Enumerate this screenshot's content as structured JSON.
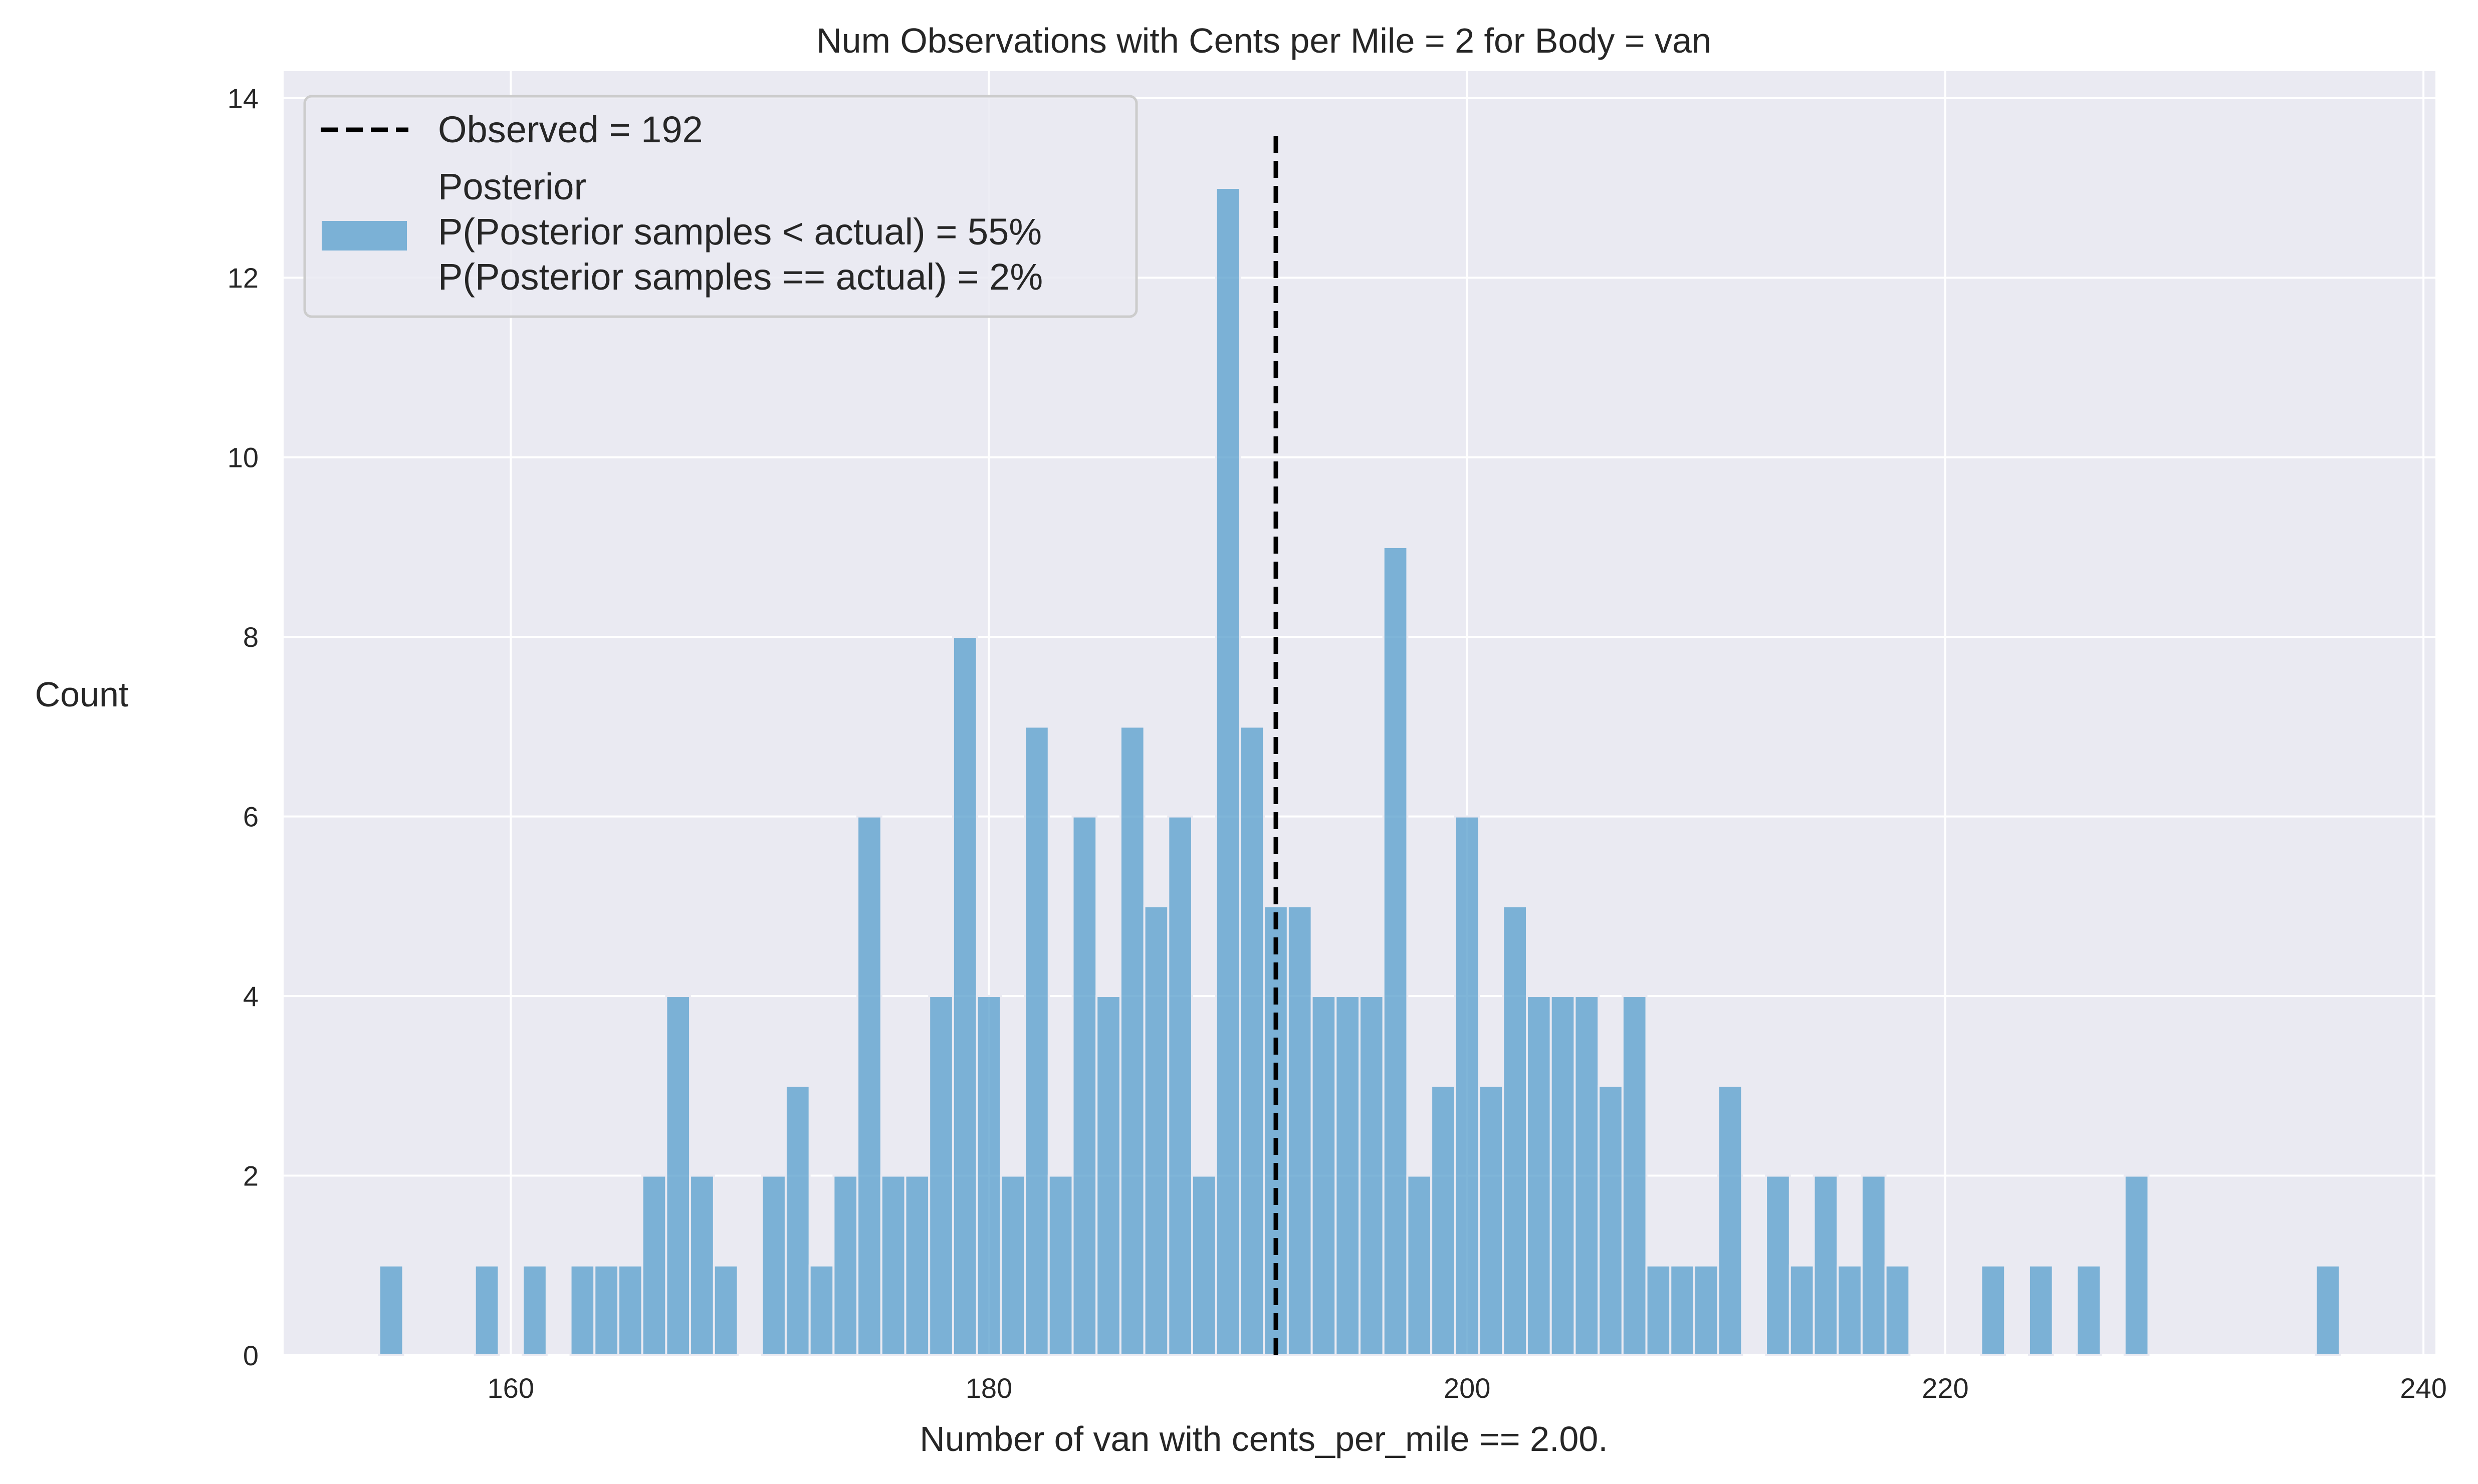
{
  "chart_data": {
    "type": "bar",
    "title": "Num Observations with Cents per Mile = 2 for Body = van",
    "xlabel": "Number of van with cents_per_mile == 2.00.",
    "ylabel": "Count",
    "xlim": [
      150.5,
      240.5
    ],
    "ylim": [
      0,
      14.3
    ],
    "x_ticks": [
      160,
      180,
      200,
      220,
      240
    ],
    "y_ticks": [
      0,
      2,
      4,
      6,
      8,
      10,
      12,
      14
    ],
    "grid": true,
    "legend_position": "top-left",
    "series": [
      {
        "name": "Posterior",
        "color": "#5fa2ce",
        "x": [
          155,
          159,
          161,
          163,
          164,
          165,
          166,
          167,
          168,
          169,
          171,
          172,
          173,
          174,
          175,
          176,
          177,
          178,
          179,
          180,
          181,
          182,
          183,
          184,
          185,
          186,
          187,
          188,
          189,
          190,
          191,
          192,
          193,
          194,
          195,
          196,
          197,
          198,
          199,
          200,
          201,
          202,
          203,
          204,
          205,
          206,
          207,
          208,
          209,
          210,
          211,
          213,
          214,
          215,
          216,
          217,
          218,
          222,
          224,
          226,
          228,
          236
        ],
        "values": [
          1,
          1,
          1,
          1,
          1,
          1,
          2,
          4,
          2,
          1,
          2,
          3,
          1,
          2,
          6,
          2,
          2,
          4,
          8,
          4,
          2,
          7,
          2,
          6,
          4,
          7,
          5,
          6,
          2,
          13,
          7,
          5,
          5,
          4,
          4,
          4,
          9,
          2,
          3,
          6,
          3,
          5,
          4,
          4,
          4,
          3,
          4,
          1,
          1,
          1,
          3,
          2,
          1,
          2,
          1,
          2,
          1,
          1,
          1,
          1,
          2,
          1
        ]
      }
    ],
    "observed": {
      "value": 192,
      "color": "#000000"
    },
    "legend": {
      "observed_label": "Observed = 192",
      "posterior_lines": [
        "Posterior",
        "P(Posterior samples < actual) = 55%",
        "P(Posterior samples == actual) = 2%"
      ]
    }
  }
}
